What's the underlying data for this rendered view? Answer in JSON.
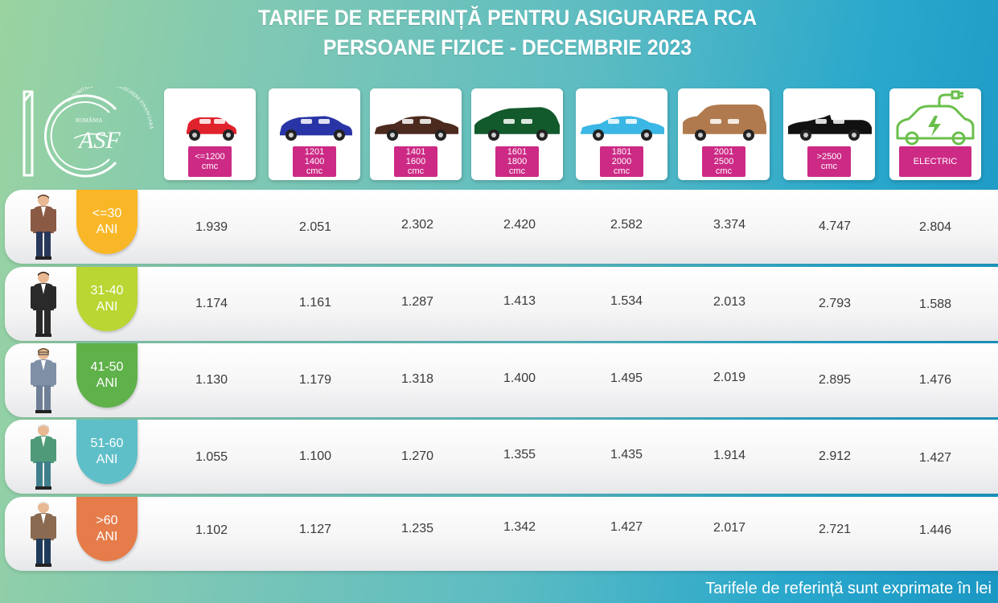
{
  "title": {
    "line1": "TARIFE DE REFERINȚĂ PENTRU ASIGURAREA RCA",
    "line2": "PERSOANE FIZICE - DECEMBRIE 2023"
  },
  "logo": {
    "text_top": "ROMÂNIA",
    "text_arc": "AUTORITATEA DE SUPRAVEGHERE FINANCIARĂ",
    "icon": "asf-10-years-logo"
  },
  "footer": "Tarifele de referință sunt exprimate în lei",
  "colors": {
    "tag": "#cc2a85",
    "badges": [
      "#f9b728",
      "#b9d632",
      "#5fb14a",
      "#5fbfc8",
      "#e57c4a"
    ],
    "cars": [
      "#e0222c",
      "#2935a6",
      "#4c2a1e",
      "#12592c",
      "#3ab7e4",
      "#b07a4e",
      "#111111",
      "#6abf4b"
    ]
  },
  "chart_data": {
    "type": "table",
    "title": "TARIFE DE REFERINȚĂ PENTRU ASIGURAREA RCA PERSOANE FIZICE - DECEMBRIE 2023",
    "columns": [
      {
        "line1": "<=1200",
        "line2": "",
        "line3": "cmc",
        "icon": "small-hatchback-car-icon"
      },
      {
        "line1": "1201",
        "line2": "1400",
        "line3": "cmc",
        "icon": "hatchback-car-icon"
      },
      {
        "line1": "1401",
        "line2": "1600",
        "line3": "cmc",
        "icon": "sedan-car-icon"
      },
      {
        "line1": "1601",
        "line2": "1800",
        "line3": "cmc",
        "icon": "minivan-car-icon"
      },
      {
        "line1": "1801",
        "line2": "2000",
        "line3": "cmc",
        "icon": "sedan-car-icon"
      },
      {
        "line1": "2001",
        "line2": "2500",
        "line3": "cmc",
        "icon": "suv-car-icon"
      },
      {
        "line1": ">2500",
        "line2": "",
        "line3": "cmc",
        "icon": "convertible-car-icon"
      },
      {
        "line1": "ELECTRIC",
        "line2": "",
        "line3": "",
        "icon": "electric-car-plug-icon"
      }
    ],
    "rows": [
      {
        "age_line1": "<=30",
        "age_line2": "ANI",
        "person": "young-man-icon",
        "values": [
          "1.939",
          "2.051",
          "2.302",
          "2.420",
          "2.582",
          "3.374",
          "4.747",
          "2.804"
        ]
      },
      {
        "age_line1": "31-40",
        "age_line2": "ANI",
        "person": "businessman-icon",
        "values": [
          "1.174",
          "1.161",
          "1.287",
          "1.413",
          "1.534",
          "2.013",
          "2.793",
          "1.588"
        ]
      },
      {
        "age_line1": "41-50",
        "age_line2": "ANI",
        "person": "man-with-glasses-icon",
        "values": [
          "1.130",
          "1.179",
          "1.318",
          "1.400",
          "1.495",
          "2.019",
          "2.895",
          "1.476"
        ]
      },
      {
        "age_line1": "51-60",
        "age_line2": "ANI",
        "person": "older-man-vest-icon",
        "values": [
          "1.055",
          "1.100",
          "1.270",
          "1.355",
          "1.435",
          "1.914",
          "2.912",
          "1.427"
        ]
      },
      {
        "age_line1": ">60",
        "age_line2": "ANI",
        "person": "elderly-man-icon",
        "values": [
          "1.102",
          "1.127",
          "1.235",
          "1.342",
          "1.427",
          "2.017",
          "2.721",
          "1.446"
        ]
      }
    ]
  }
}
